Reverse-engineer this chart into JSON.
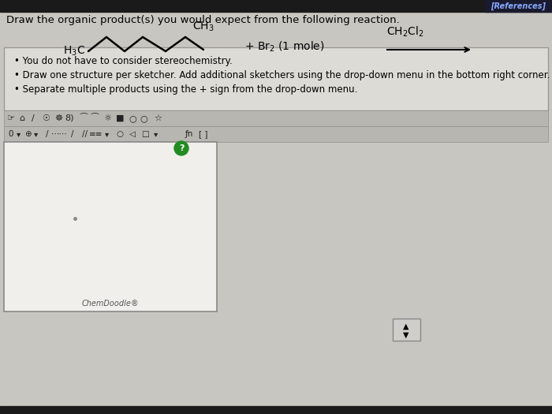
{
  "bg_color": "#c8c6c0",
  "title_text": "Draw the organic product(s) you would expect from the following reaction.",
  "references_text": "[References]",
  "references_color": "#6699ff",
  "references_bg": "#1a1a2e",
  "bullet1": "You do not have to consider stereochemistry.",
  "bullet2": "Draw one structure per sketcher. Add additional sketchers using the drop-down menu in the bottom right corner.",
  "bullet3": "Separate multiple products using the + sign from the drop-down menu.",
  "chemdoodle_text": "ChemDoodle®",
  "sketcher_bg": "#f0efeb",
  "sketcher_border": "#888888",
  "info_box_bg": "#dddbd5",
  "toolbar_bg": "#c0bebb",
  "top_bar_color": "#1a1a1a"
}
